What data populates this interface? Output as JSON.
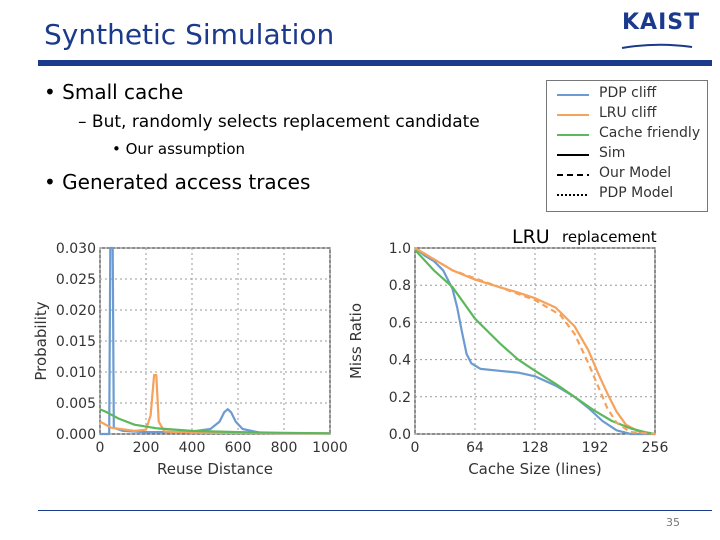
{
  "slide": {
    "title": "Synthetic Simulation",
    "logo": "KAIST",
    "bullets": [
      {
        "text": "Small cache"
      },
      {
        "text": "Generated access traces"
      }
    ],
    "sub_bullet": "– But, randomly selects replacement candidate",
    "sub_sub_bullet": "Our assumption",
    "lru_label": "LRU",
    "replacement_label": "replacement",
    "page_number": "35"
  },
  "legend": {
    "entries": [
      {
        "label": "PDP cliff",
        "color": "#6b9bd1",
        "style": "solid"
      },
      {
        "label": "LRU cliff",
        "color": "#f4a25c",
        "style": "solid"
      },
      {
        "label": "Cache friendly",
        "color": "#5cb85c",
        "style": "solid"
      },
      {
        "label": "Sim",
        "color": "#000000",
        "style": "solid"
      },
      {
        "label": "Our Model",
        "color": "#000000",
        "style": "dashed"
      },
      {
        "label": "PDP Model",
        "color": "#000000",
        "style": "dotted"
      }
    ]
  },
  "chart_data": [
    {
      "type": "line",
      "xlabel": "Reuse Distance",
      "ylabel": "Probability",
      "xlim": [
        0,
        1000
      ],
      "ylim": [
        0,
        0.03
      ],
      "x_ticks": [
        "0",
        "200",
        "400",
        "600",
        "800",
        "1000"
      ],
      "y_ticks": [
        "0.000",
        "0.005",
        "0.010",
        "0.015",
        "0.020",
        "0.025",
        "0.030"
      ],
      "grid": true,
      "series": [
        {
          "name": "PDP cliff",
          "color": "#6b9bd1",
          "points": [
            [
              0,
              0
            ],
            [
              40,
              0
            ],
            [
              45,
              0.03
            ],
            [
              55,
              0.03
            ],
            [
              60,
              0.001
            ],
            [
              100,
              0.0005
            ],
            [
              200,
              0.0003
            ],
            [
              300,
              0.0003
            ],
            [
              400,
              0.0004
            ],
            [
              480,
              0.0008
            ],
            [
              520,
              0.002
            ],
            [
              540,
              0.0035
            ],
            [
              555,
              0.004
            ],
            [
              570,
              0.0035
            ],
            [
              590,
              0.002
            ],
            [
              620,
              0.0008
            ],
            [
              700,
              0.0002
            ],
            [
              800,
              0.0001
            ],
            [
              1000,
              0.0001
            ]
          ]
        },
        {
          "name": "LRU cliff",
          "color": "#f4a25c",
          "points": [
            [
              0,
              0.002
            ],
            [
              50,
              0.001
            ],
            [
              150,
              0.0005
            ],
            [
              200,
              0.0007
            ],
            [
              220,
              0.003
            ],
            [
              235,
              0.0095
            ],
            [
              245,
              0.0095
            ],
            [
              255,
              0.002
            ],
            [
              280,
              0.0004
            ],
            [
              400,
              0.0002
            ],
            [
              1000,
              0.0001
            ]
          ]
        },
        {
          "name": "Cache friendly",
          "color": "#5cb85c",
          "points": [
            [
              0,
              0.004
            ],
            [
              30,
              0.0035
            ],
            [
              80,
              0.0025
            ],
            [
              150,
              0.0015
            ],
            [
              250,
              0.0009
            ],
            [
              400,
              0.0005
            ],
            [
              600,
              0.0003
            ],
            [
              800,
              0.0002
            ],
            [
              1000,
              0.0001
            ]
          ]
        }
      ]
    },
    {
      "type": "line",
      "xlabel": "Cache Size (lines)",
      "ylabel": "Miss Ratio",
      "xlim": [
        0,
        256
      ],
      "ylim": [
        0,
        1.0
      ],
      "x_ticks": [
        "0",
        "64",
        "128",
        "192",
        "256"
      ],
      "y_ticks": [
        "0.0",
        "0.2",
        "0.4",
        "0.6",
        "0.8",
        "1.0"
      ],
      "grid": true,
      "series": [
        {
          "name": "PDP cliff",
          "color": "#6b9bd1",
          "style": "solid",
          "points": [
            [
              0,
              1.0
            ],
            [
              10,
              0.96
            ],
            [
              20,
              0.93
            ],
            [
              30,
              0.88
            ],
            [
              40,
              0.78
            ],
            [
              45,
              0.68
            ],
            [
              50,
              0.55
            ],
            [
              55,
              0.43
            ],
            [
              60,
              0.38
            ],
            [
              70,
              0.35
            ],
            [
              90,
              0.34
            ],
            [
              110,
              0.33
            ],
            [
              128,
              0.31
            ],
            [
              150,
              0.26
            ],
            [
              170,
              0.2
            ],
            [
              185,
              0.14
            ],
            [
              200,
              0.07
            ],
            [
              215,
              0.02
            ],
            [
              230,
              0.0
            ],
            [
              256,
              0.0
            ]
          ]
        },
        {
          "name": "LRU cliff",
          "color": "#f4a25c",
          "style": "solid",
          "points": [
            [
              0,
              1.0
            ],
            [
              20,
              0.94
            ],
            [
              40,
              0.88
            ],
            [
              64,
              0.83
            ],
            [
              90,
              0.79
            ],
            [
              110,
              0.76
            ],
            [
              128,
              0.73
            ],
            [
              150,
              0.68
            ],
            [
              170,
              0.58
            ],
            [
              185,
              0.45
            ],
            [
              195,
              0.33
            ],
            [
              205,
              0.22
            ],
            [
              215,
              0.12
            ],
            [
              225,
              0.05
            ],
            [
              240,
              0.01
            ],
            [
              256,
              0.0
            ]
          ]
        },
        {
          "name": "Cache friendly",
          "color": "#5cb85c",
          "style": "solid",
          "points": [
            [
              0,
              0.99
            ],
            [
              20,
              0.88
            ],
            [
              40,
              0.79
            ],
            [
              64,
              0.62
            ],
            [
              90,
              0.49
            ],
            [
              110,
              0.4
            ],
            [
              128,
              0.34
            ],
            [
              150,
              0.27
            ],
            [
              170,
              0.2
            ],
            [
              190,
              0.13
            ],
            [
              210,
              0.07
            ],
            [
              230,
              0.03
            ],
            [
              245,
              0.01
            ],
            [
              256,
              0.0
            ]
          ]
        },
        {
          "name": "LRU Our Model",
          "color": "#f4a25c",
          "style": "dashed",
          "points": [
            [
              0,
              1.0
            ],
            [
              40,
              0.88
            ],
            [
              90,
              0.79
            ],
            [
              128,
              0.72
            ],
            [
              155,
              0.64
            ],
            [
              170,
              0.54
            ],
            [
              185,
              0.38
            ],
            [
              195,
              0.26
            ],
            [
              205,
              0.14
            ],
            [
              215,
              0.06
            ],
            [
              230,
              0.01
            ],
            [
              256,
              0.0
            ]
          ]
        }
      ]
    }
  ]
}
